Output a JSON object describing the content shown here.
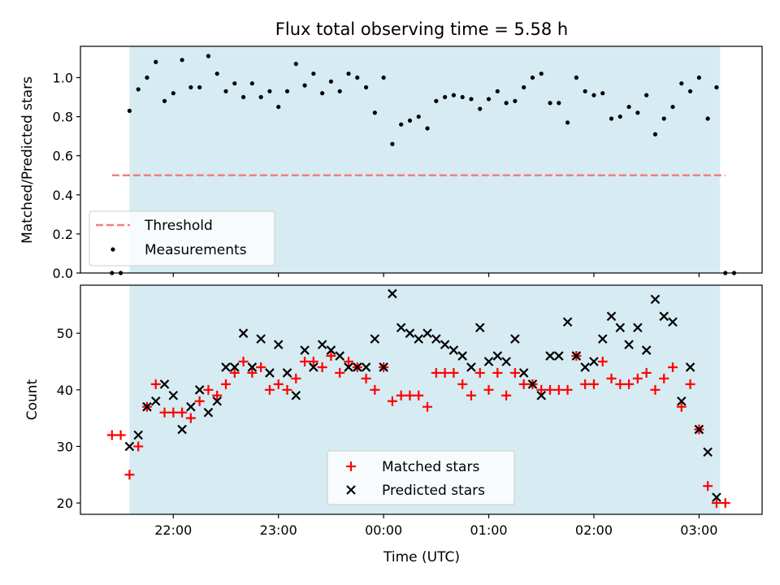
{
  "title": "Flux total observing time = 5.58 h",
  "colors": {
    "observing_band": "#add8e6",
    "threshold": "#f08080",
    "measurements": "#000000",
    "matched": "#ff0000",
    "predicted": "#000000"
  },
  "chart_data": [
    {
      "type": "scatter",
      "ylabel": "Matched/Predicted stars",
      "ylim": [
        0,
        1.16
      ],
      "yticks": [
        "0.0",
        "0.2",
        "0.4",
        "0.6",
        "0.8",
        "1.0"
      ],
      "xlim": [
        "21:07",
        "03:36"
      ],
      "observing_window": [
        "21:35",
        "03:12"
      ],
      "threshold": {
        "label": "Threshold",
        "value": 0.5,
        "x_range": [
          "21:25",
          "03:15"
        ]
      },
      "legend": {
        "location": "lower-left",
        "entries": [
          "Threshold",
          "Measurements"
        ]
      },
      "series": [
        {
          "name": "Measurements",
          "x": [
            "21:25",
            "21:30",
            "21:35",
            "21:40",
            "21:45",
            "21:50",
            "21:55",
            "22:00",
            "22:05",
            "22:10",
            "22:15",
            "22:20",
            "22:25",
            "22:30",
            "22:35",
            "22:40",
            "22:45",
            "22:50",
            "22:55",
            "23:00",
            "23:05",
            "23:10",
            "23:15",
            "23:20",
            "23:25",
            "23:30",
            "23:35",
            "23:40",
            "23:45",
            "23:50",
            "23:55",
            "00:00",
            "00:05",
            "00:10",
            "00:15",
            "00:20",
            "00:25",
            "00:30",
            "00:35",
            "00:40",
            "00:45",
            "00:50",
            "00:55",
            "01:00",
            "01:05",
            "01:10",
            "01:15",
            "01:20",
            "01:25",
            "01:30",
            "01:35",
            "01:40",
            "01:45",
            "01:50",
            "01:55",
            "02:00",
            "02:05",
            "02:10",
            "02:15",
            "02:20",
            "02:25",
            "02:30",
            "02:35",
            "02:40",
            "02:45",
            "02:50",
            "02:55",
            "03:00",
            "03:05",
            "03:10",
            "03:15",
            "03:20"
          ],
          "y": [
            0,
            0,
            0.83,
            0.94,
            1.0,
            1.08,
            0.88,
            0.92,
            1.09,
            0.95,
            0.95,
            1.11,
            1.02,
            0.93,
            0.97,
            0.9,
            0.97,
            0.9,
            0.93,
            0.85,
            0.93,
            1.07,
            0.96,
            1.02,
            0.92,
            0.98,
            0.93,
            1.02,
            1.0,
            0.95,
            0.82,
            1.0,
            0.66,
            0.76,
            0.78,
            0.8,
            0.74,
            0.88,
            0.9,
            0.91,
            0.9,
            0.89,
            0.84,
            0.89,
            0.93,
            0.87,
            0.88,
            0.95,
            1.0,
            1.02,
            0.87,
            0.87,
            0.77,
            1.0,
            0.93,
            0.91,
            0.92,
            0.79,
            0.8,
            0.85,
            0.82,
            0.91,
            0.71,
            0.79,
            0.85,
            0.97,
            0.93,
            1.0,
            0.79,
            0.95,
            0,
            0
          ]
        }
      ]
    },
    {
      "type": "scatter",
      "ylabel": "Count",
      "xlabel": "Time (UTC)",
      "ylim": [
        18,
        58.5
      ],
      "yticks": [
        "20",
        "30",
        "40",
        "50"
      ],
      "xlim": [
        "21:07",
        "03:36"
      ],
      "xticks": [
        "22:00",
        "23:00",
        "00:00",
        "01:00",
        "02:00",
        "03:00"
      ],
      "observing_window": [
        "21:35",
        "03:12"
      ],
      "legend": {
        "location": "lower-center",
        "entries": [
          "Matched stars",
          "Predicted stars"
        ]
      },
      "series": [
        {
          "name": "Matched stars",
          "marker": "+",
          "x": [
            "21:25",
            "21:30",
            "21:35",
            "21:40",
            "21:45",
            "21:50",
            "21:55",
            "22:00",
            "22:05",
            "22:10",
            "22:15",
            "22:20",
            "22:25",
            "22:30",
            "22:35",
            "22:40",
            "22:45",
            "22:50",
            "22:55",
            "23:00",
            "23:05",
            "23:10",
            "23:15",
            "23:20",
            "23:25",
            "23:30",
            "23:35",
            "23:40",
            "23:45",
            "23:50",
            "23:55",
            "00:00",
            "00:05",
            "00:10",
            "00:15",
            "00:20",
            "00:25",
            "00:30",
            "00:35",
            "00:40",
            "00:45",
            "00:50",
            "00:55",
            "01:00",
            "01:05",
            "01:10",
            "01:15",
            "01:20",
            "01:25",
            "01:30",
            "01:35",
            "01:40",
            "01:45",
            "01:50",
            "01:55",
            "02:00",
            "02:05",
            "02:10",
            "02:15",
            "02:20",
            "02:25",
            "02:30",
            "02:35",
            "02:40",
            "02:45",
            "02:50",
            "02:55",
            "03:00",
            "03:05",
            "03:10",
            "03:15",
            "03:20"
          ],
          "y": [
            32,
            32,
            25,
            30,
            37,
            41,
            36,
            36,
            36,
            35,
            38,
            40,
            39,
            41,
            43,
            45,
            43,
            44,
            40,
            41,
            40,
            42,
            45,
            45,
            44,
            46,
            43,
            45,
            44,
            42,
            40,
            44,
            38,
            39,
            39,
            39,
            37,
            43,
            43,
            43,
            41,
            39,
            43,
            40,
            43,
            39,
            43,
            41,
            41,
            40,
            40,
            40,
            40,
            46,
            41,
            41,
            45,
            42,
            41,
            41,
            42,
            43,
            40,
            42,
            44,
            37,
            41,
            33,
            23,
            20,
            20,
            null
          ]
        },
        {
          "name": "Predicted stars",
          "marker": "x",
          "x": [
            "21:35",
            "21:40",
            "21:45",
            "21:50",
            "21:55",
            "22:00",
            "22:05",
            "22:10",
            "22:15",
            "22:20",
            "22:25",
            "22:30",
            "22:35",
            "22:40",
            "22:45",
            "22:50",
            "22:55",
            "23:00",
            "23:05",
            "23:10",
            "23:15",
            "23:20",
            "23:25",
            "23:30",
            "23:35",
            "23:40",
            "23:45",
            "23:50",
            "23:55",
            "00:00",
            "00:05",
            "00:10",
            "00:15",
            "00:20",
            "00:25",
            "00:30",
            "00:35",
            "00:40",
            "00:45",
            "00:50",
            "00:55",
            "01:00",
            "01:05",
            "01:10",
            "01:15",
            "01:20",
            "01:25",
            "01:30",
            "01:35",
            "01:40",
            "01:45",
            "01:50",
            "01:55",
            "02:00",
            "02:05",
            "02:10",
            "02:15",
            "02:20",
            "02:25",
            "02:30",
            "02:35",
            "02:40",
            "02:45",
            "02:50",
            "02:55",
            "03:00",
            "03:05",
            "03:10",
            "03:15"
          ],
          "y": [
            30,
            32,
            37,
            38,
            41,
            39,
            33,
            37,
            40,
            36,
            38,
            44,
            44,
            50,
            44,
            49,
            43,
            48,
            43,
            39,
            47,
            44,
            48,
            47,
            46,
            44,
            44,
            44,
            49,
            44,
            57,
            51,
            50,
            49,
            50,
            49,
            48,
            47,
            46,
            44,
            51,
            45,
            46,
            45,
            49,
            43,
            41,
            39,
            46,
            46,
            52,
            46,
            44,
            45,
            49,
            53,
            51,
            48,
            51,
            47,
            56,
            53,
            52,
            38,
            44,
            33,
            29,
            21,
            null
          ]
        }
      ]
    }
  ]
}
